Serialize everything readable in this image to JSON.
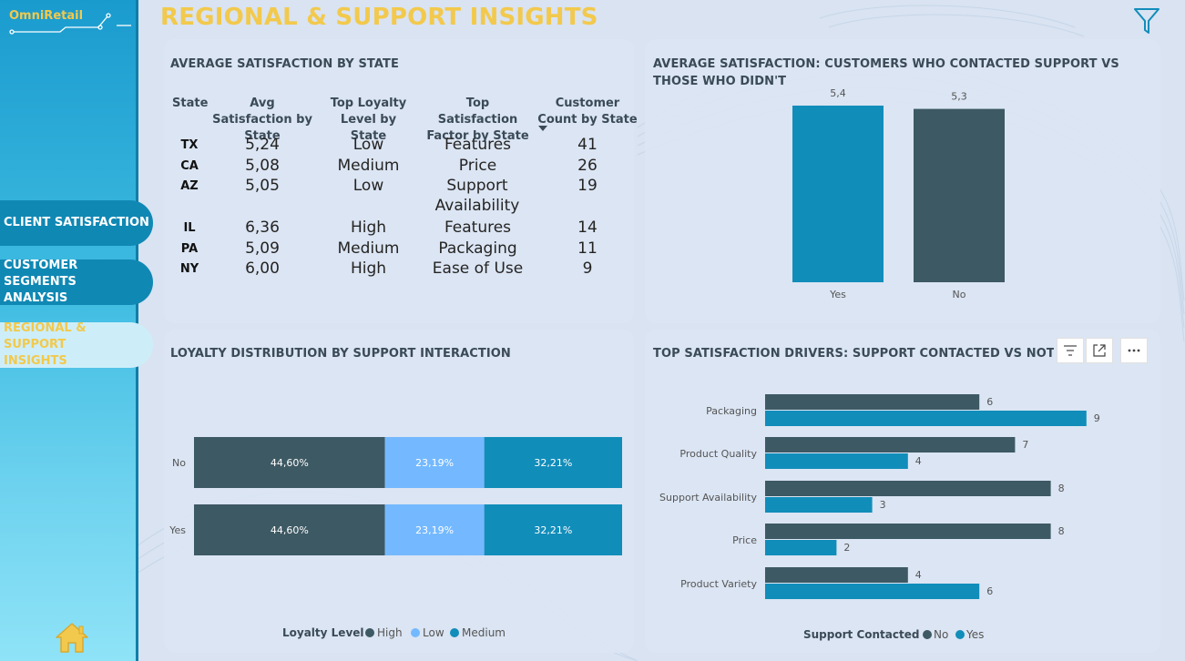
{
  "brand": {
    "name": "OmniRetail"
  },
  "page": {
    "title": "REGIONAL & SUPPORT INSIGHTS"
  },
  "nav": {
    "items": [
      {
        "label": "CLIENT SATISFACTION"
      },
      {
        "label": "CUSTOMER SEGMENTS ANALYSIS"
      },
      {
        "label": "REGIONAL & SUPPORT INSIGHTS",
        "active": true
      }
    ]
  },
  "icons": [
    "funnel-filter-icon",
    "home-icon",
    "filter-lines-icon",
    "focus-mode-icon",
    "more-options-icon"
  ],
  "colors": {
    "accent_yellow": "#f2c94c",
    "dark_slate": "#3d5963",
    "teal": "#118dba",
    "light_blue": "#74b9ff"
  },
  "state_table": {
    "title": "AVERAGE SATISFACTION BY STATE",
    "headers": [
      "State",
      "Avg Satisfaction by State",
      "Top Loyalty Level by State",
      "Top Satisfaction Factor by State",
      "Customer Count by State"
    ],
    "rows": [
      {
        "state": "TX",
        "avg": "5,24",
        "loyalty": "Low",
        "factor": "Features",
        "count": "41"
      },
      {
        "state": "CA",
        "avg": "5,08",
        "loyalty": "Medium",
        "factor": "Price",
        "count": "26"
      },
      {
        "state": "AZ",
        "avg": "5,05",
        "loyalty": "Low",
        "factor": "Support Availability",
        "count": "19"
      },
      {
        "state": "IL",
        "avg": "6,36",
        "loyalty": "High",
        "factor": "Features",
        "count": "14"
      },
      {
        "state": "PA",
        "avg": "5,09",
        "loyalty": "Medium",
        "factor": "Packaging",
        "count": "11"
      },
      {
        "state": "NY",
        "avg": "6,00",
        "loyalty": "High",
        "factor": "Ease of Use",
        "count": "9"
      }
    ]
  },
  "chart_data": [
    {
      "type": "bar",
      "title": "AVERAGE SATISFACTION: CUSTOMERS WHO CONTACTED SUPPORT VS THOSE WHO DIDN'T",
      "categories": [
        "Yes",
        "No"
      ],
      "values": [
        5.4,
        5.3
      ],
      "value_labels": [
        "5,4",
        "5,3"
      ],
      "colors": [
        "#118dba",
        "#3d5963"
      ],
      "grid": false
    },
    {
      "type": "bar",
      "orientation": "horizontal-stacked-100",
      "title": "LOYALTY DISTRIBUTION BY SUPPORT INTERACTION",
      "categories": [
        "No",
        "Yes"
      ],
      "legend_title": "Loyalty Level",
      "legend_position": "bottom",
      "series": [
        {
          "name": "High",
          "color": "#3d5963",
          "values": [
            44.6,
            44.6
          ],
          "labels": [
            "44,60%",
            "44,60%"
          ]
        },
        {
          "name": "Low",
          "color": "#74b9ff",
          "values": [
            23.19,
            23.19
          ],
          "labels": [
            "23,19%",
            "23,19%"
          ]
        },
        {
          "name": "Medium",
          "color": "#118dba",
          "values": [
            32.21,
            32.21
          ],
          "labels": [
            "32,21%",
            "32,21%"
          ]
        }
      ]
    },
    {
      "type": "bar",
      "orientation": "horizontal-clustered",
      "title": "TOP SATISFACTION DRIVERS: SUPPORT CONTACTED VS NOT CONT",
      "categories": [
        "Packaging",
        "Product Quality",
        "Support Availability",
        "Price",
        "Product Variety"
      ],
      "legend_title": "Support Contacted",
      "legend_position": "bottom",
      "xlim": [
        0,
        9
      ],
      "series": [
        {
          "name": "No",
          "color": "#3d5963",
          "values": [
            6,
            7,
            8,
            8,
            4
          ]
        },
        {
          "name": "Yes",
          "color": "#118dba",
          "values": [
            9,
            4,
            3,
            2,
            6
          ]
        }
      ]
    }
  ]
}
